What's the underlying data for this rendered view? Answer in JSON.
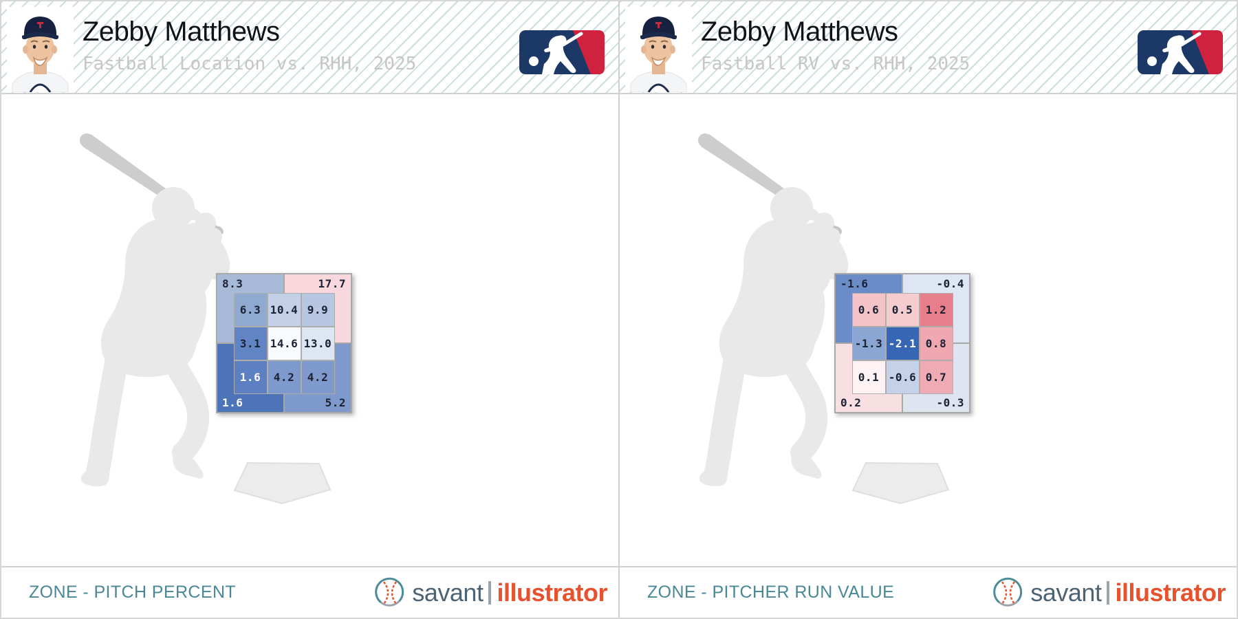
{
  "colors": {
    "header_stripe": "#ccdde0",
    "panel_divider": "#cfcfcf",
    "footer_teal": "#4a8796",
    "savant_slate": "#4d6373",
    "illustrator_orange": "#e8512d",
    "brand_divider_grey": "#9aa5ad",
    "zone_text_dark": "#1a2233",
    "zone_text_light": "#ffffff",
    "zone_grid_line": "#a8a8a8",
    "mlb_navy": "#1b3866",
    "mlb_red": "#d0223f",
    "batter_silhouette_grey": "#e9e9e9",
    "bat_grey": "#cdcdcd",
    "home_plate_grey": "#ececec",
    "subtitle_grey": "#c6c6c6"
  },
  "panels": [
    {
      "title": "Zebby Matthews",
      "subtitle": "Fastball Location vs. RHH, 2025",
      "footer_label": "ZONE - PITCH PERCENT",
      "brand_savant": "savant",
      "brand_illustrator": "illustrator"
    },
    {
      "title": "Zebby Matthews",
      "subtitle": "Fastball RV vs. RHH, 2025",
      "footer_label": "ZONE - PITCHER RUN VALUE",
      "brand_savant": "savant",
      "brand_illustrator": "illustrator"
    }
  ],
  "chart_data": [
    {
      "type": "heatmap",
      "panel": "left",
      "title": "Fastball Location vs. RHH, 2025",
      "metric": "zone pitch percent",
      "outer_cells": [
        {
          "pos": "top-left",
          "label": "8.3",
          "value": 8.3,
          "bg": "#a7bbd9",
          "fg": "#1a2233"
        },
        {
          "pos": "top-right",
          "label": "17.7",
          "value": 17.7,
          "bg": "#f8d8dc",
          "fg": "#1a2233"
        },
        {
          "pos": "bottom-left",
          "label": "1.6",
          "value": 1.6,
          "bg": "#4d74b9",
          "fg": "#ffffff"
        },
        {
          "pos": "bottom-right",
          "label": "5.2",
          "value": 5.2,
          "bg": "#7e99cb",
          "fg": "#1a2233"
        }
      ],
      "inner_cells": [
        {
          "row": 0,
          "col": 0,
          "label": "6.3",
          "value": 6.3,
          "bg": "#8fa9d1",
          "fg": "#1a2233"
        },
        {
          "row": 0,
          "col": 1,
          "label": "10.4",
          "value": 10.4,
          "bg": "#c3d0e7",
          "fg": "#1a2233"
        },
        {
          "row": 0,
          "col": 2,
          "label": "9.9",
          "value": 9.9,
          "bg": "#b7c7e1",
          "fg": "#1a2233"
        },
        {
          "row": 1,
          "col": 0,
          "label": "3.1",
          "value": 3.1,
          "bg": "#6185c4",
          "fg": "#1a2233"
        },
        {
          "row": 1,
          "col": 1,
          "label": "14.6",
          "value": 14.6,
          "bg": "#f9fafd",
          "fg": "#1a2233"
        },
        {
          "row": 1,
          "col": 2,
          "label": "13.0",
          "value": 13.0,
          "bg": "#dee6f3",
          "fg": "#1a2233"
        },
        {
          "row": 2,
          "col": 0,
          "label": "1.6",
          "value": 1.6,
          "bg": "#5c80c1",
          "fg": "#ffffff"
        },
        {
          "row": 2,
          "col": 1,
          "label": "4.2",
          "value": 4.2,
          "bg": "#7e99cb",
          "fg": "#1a2233"
        },
        {
          "row": 2,
          "col": 2,
          "label": "4.2",
          "value": 4.2,
          "bg": "#7e99cb",
          "fg": "#1a2233"
        }
      ]
    },
    {
      "type": "heatmap",
      "panel": "right",
      "title": "Fastball RV vs. RHH, 2025",
      "metric": "zone pitcher run value",
      "outer_cells": [
        {
          "pos": "top-left",
          "label": "-1.6",
          "value": -1.6,
          "bg": "#6a8cc7",
          "fg": "#1a2233"
        },
        {
          "pos": "top-right",
          "label": "-0.4",
          "value": -0.4,
          "bg": "#dfe6f3",
          "fg": "#1a2233"
        },
        {
          "pos": "bottom-left",
          "label": "0.2",
          "value": 0.2,
          "bg": "#f8dfe2",
          "fg": "#1a2233"
        },
        {
          "pos": "bottom-right",
          "label": "-0.3",
          "value": -0.3,
          "bg": "#dee5f1",
          "fg": "#1a2233"
        }
      ],
      "inner_cells": [
        {
          "row": 0,
          "col": 0,
          "label": "0.6",
          "value": 0.6,
          "bg": "#f3c3c8",
          "fg": "#1a2233"
        },
        {
          "row": 0,
          "col": 1,
          "label": "0.5",
          "value": 0.5,
          "bg": "#f5cdd1",
          "fg": "#1a2233"
        },
        {
          "row": 0,
          "col": 2,
          "label": "1.2",
          "value": 1.2,
          "bg": "#e67f8b",
          "fg": "#1a2233"
        },
        {
          "row": 1,
          "col": 0,
          "label": "-1.3",
          "value": -1.3,
          "bg": "#8ba6d3",
          "fg": "#1a2233"
        },
        {
          "row": 1,
          "col": 1,
          "label": "-2.1",
          "value": -2.1,
          "bg": "#3766b4",
          "fg": "#ffffff"
        },
        {
          "row": 1,
          "col": 2,
          "label": "0.8",
          "value": 0.8,
          "bg": "#efa8b0",
          "fg": "#1a2233"
        },
        {
          "row": 2,
          "col": 0,
          "label": "0.1",
          "value": 0.1,
          "bg": "#fdf3f4",
          "fg": "#1a2233"
        },
        {
          "row": 2,
          "col": 1,
          "label": "-0.6",
          "value": -0.6,
          "bg": "#c4d1e8",
          "fg": "#1a2233"
        },
        {
          "row": 2,
          "col": 2,
          "label": "0.7",
          "value": 0.7,
          "bg": "#efabb3",
          "fg": "#1a2233"
        }
      ]
    }
  ]
}
